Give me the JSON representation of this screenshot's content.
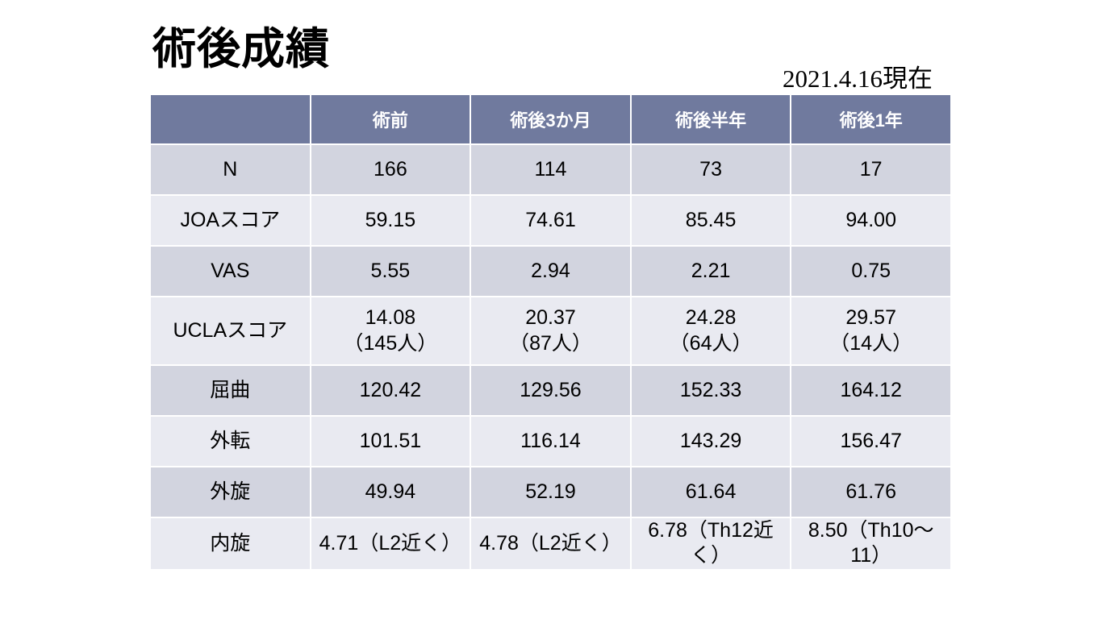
{
  "slide": {
    "title": "術後成績",
    "date_note": "2021.4.16現在"
  },
  "colors": {
    "header_bg": "#707A9E",
    "header_text": "#FFFFFF",
    "row_band_dark": "#D2D4DF",
    "row_band_light": "#E9EAF1",
    "body_text": "#000000",
    "grid_line": "#FFFFFF",
    "slide_bg": "#FFFFFF"
  },
  "table": {
    "columns": [
      "",
      "術前",
      "術後3か月",
      "術後半年",
      "術後1年"
    ],
    "rows": [
      {
        "label": "N",
        "values": [
          "166",
          "114",
          "73",
          "17"
        ]
      },
      {
        "label": "JOAスコア",
        "values": [
          "59.15",
          "74.61",
          "85.45",
          "94.00"
        ]
      },
      {
        "label": "VAS",
        "values": [
          "5.55",
          "2.94",
          "2.21",
          "0.75"
        ]
      },
      {
        "label": "UCLAスコア",
        "values": [
          "14.08\n（145人）",
          "20.37\n（87人）",
          "24.28\n（64人）",
          "29.57\n（14人）"
        ]
      },
      {
        "label": "屈曲",
        "values": [
          "120.42",
          "129.56",
          "152.33",
          "164.12"
        ]
      },
      {
        "label": "外転",
        "values": [
          "101.51",
          "116.14",
          "143.29",
          "156.47"
        ]
      },
      {
        "label": "外旋",
        "values": [
          "49.94",
          "52.19",
          "61.64",
          "61.76"
        ]
      },
      {
        "label": "内旋",
        "values": [
          "4.71（L2近く）",
          "4.78（L2近く）",
          "6.78（Th12近く）",
          "8.50（Th10～11）"
        ]
      }
    ]
  }
}
